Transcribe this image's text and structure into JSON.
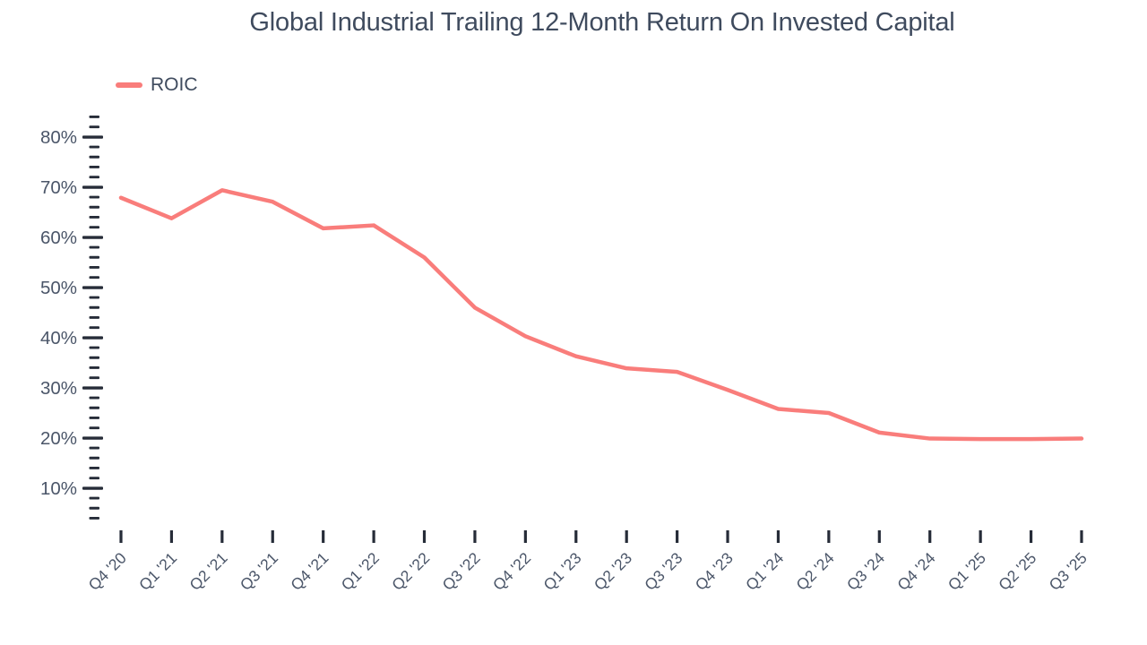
{
  "chart_data": {
    "type": "line",
    "title": "Global Industrial Trailing 12-Month Return On Invested Capital",
    "categories": [
      "Q4 '20",
      "Q1 '21",
      "Q2 '21",
      "Q3 '21",
      "Q4 '21",
      "Q1 '22",
      "Q2 '22",
      "Q3 '22",
      "Q4 '22",
      "Q1 '23",
      "Q2 '23",
      "Q3 '23",
      "Q4 '23",
      "Q1 '24",
      "Q2 '24",
      "Q3 '24",
      "Q4 '24",
      "Q1 '25",
      "Q2 '25",
      "Q3 '25"
    ],
    "series": [
      {
        "name": "ROIC",
        "color": "#f97d7b",
        "values": [
          67.9,
          63.8,
          69.4,
          67.1,
          61.8,
          62.4,
          56.0,
          46.0,
          40.3,
          36.3,
          33.9,
          33.2,
          29.6,
          25.8,
          25.0,
          21.1,
          19.9,
          19.8,
          19.8,
          19.9
        ]
      }
    ],
    "xlabel": "",
    "ylabel": "",
    "ytick_values": [
      10,
      20,
      30,
      40,
      50,
      60,
      70,
      80
    ],
    "ytick_labels": [
      "10%",
      "20%",
      "30%",
      "40%",
      "50%",
      "60%",
      "70%",
      "80%"
    ],
    "yminor_step": 2,
    "ylim": [
      4,
      84
    ],
    "grid": false,
    "legend_position": "top-left"
  },
  "colors": {
    "line": "#f97d7b",
    "tick": "#262c38",
    "axis_label": "#4b5669",
    "title_text": "#3f4b5e",
    "background": "#ffffff"
  }
}
